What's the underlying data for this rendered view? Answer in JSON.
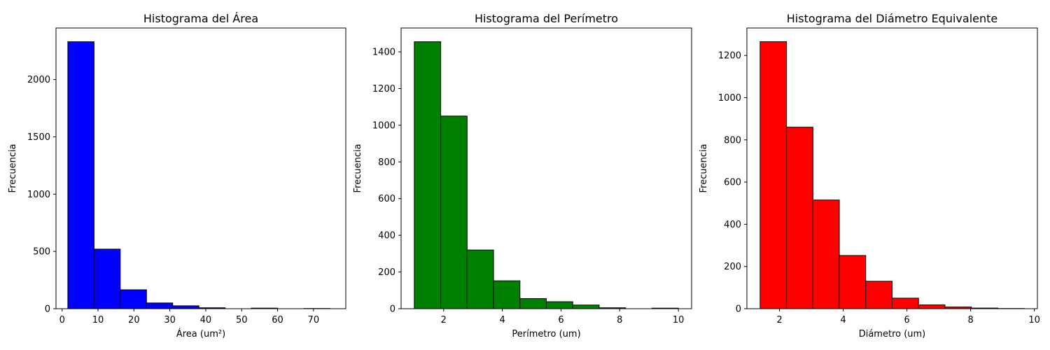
{
  "chart_data": [
    {
      "type": "bar",
      "title": "Histograma del Área",
      "xlabel": "Área (um²)",
      "ylabel": "Frecuencia",
      "color": "#0000ff",
      "edge_color": "#000000",
      "xlim": [
        -1.7,
        79.0
      ],
      "ylim": [
        0,
        2450
      ],
      "xticks": [
        0,
        10,
        20,
        30,
        40,
        50,
        60,
        70
      ],
      "yticks": [
        0,
        500,
        1000,
        1500,
        2000
      ],
      "bin_edges": [
        1.6,
        8.9,
        16.2,
        23.5,
        30.8,
        38.1,
        45.4,
        52.7,
        60.0,
        67.3,
        74.6
      ],
      "counts": [
        2330,
        520,
        165,
        50,
        25,
        8,
        0,
        5,
        0,
        2
      ]
    },
    {
      "type": "bar",
      "title": "Histograma del Perímetro",
      "xlabel": "Perímetro (um)",
      "ylabel": "Frecuencia",
      "color": "#008000",
      "edge_color": "#000000",
      "xlim": [
        0.55,
        10.45
      ],
      "ylim": [
        0,
        1530
      ],
      "xticks": [
        2,
        4,
        6,
        8,
        10
      ],
      "yticks": [
        0,
        200,
        400,
        600,
        800,
        1000,
        1200,
        1400
      ],
      "bin_edges": [
        1.0,
        1.9,
        2.8,
        3.7,
        4.6,
        5.5,
        6.4,
        7.3,
        8.2,
        9.1,
        10.0
      ],
      "counts": [
        1455,
        1050,
        320,
        152,
        55,
        38,
        20,
        5,
        0,
        3
      ]
    },
    {
      "type": "bar",
      "title": "Histograma del Diámetro Equivalente",
      "xlabel": "Diámetro (um)",
      "ylabel": "Frecuencia",
      "color": "#ff0000",
      "edge_color": "#000000",
      "xlim": [
        0.975,
        10.095
      ],
      "ylim": [
        0,
        1330
      ],
      "xticks": [
        2,
        4,
        6,
        8,
        10
      ],
      "yticks": [
        0,
        200,
        400,
        600,
        800,
        1000,
        1200
      ],
      "bin_edges": [
        1.39,
        2.219,
        3.048,
        3.877,
        4.706,
        5.535,
        6.364,
        7.193,
        8.022,
        8.851,
        9.68
      ],
      "counts": [
        1265,
        860,
        515,
        252,
        130,
        50,
        18,
        8,
        3,
        1
      ]
    }
  ]
}
